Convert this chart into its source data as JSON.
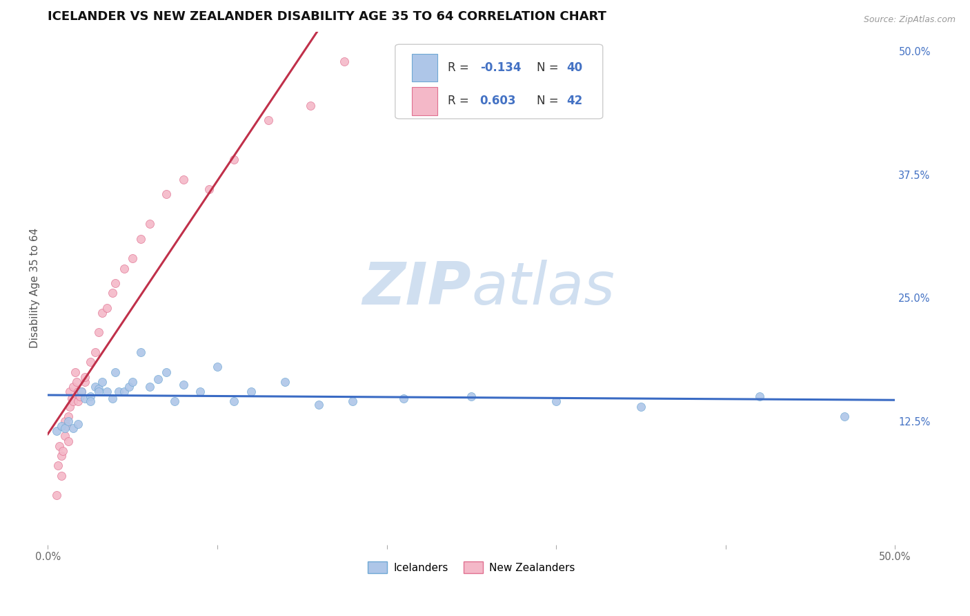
{
  "title": "ICELANDER VS NEW ZEALANDER DISABILITY AGE 35 TO 64 CORRELATION CHART",
  "source_text": "Source: ZipAtlas.com",
  "ylabel": "Disability Age 35 to 64",
  "xlim": [
    0.0,
    0.5
  ],
  "ylim": [
    0.0,
    0.52
  ],
  "x_ticks": [
    0.0,
    0.1,
    0.2,
    0.3,
    0.4,
    0.5
  ],
  "x_tick_labels": [
    "0.0%",
    "",
    "",
    "",
    "",
    "50.0%"
  ],
  "right_y_ticks": [
    0.125,
    0.25,
    0.375,
    0.5
  ],
  "right_y_tick_labels": [
    "12.5%",
    "25.0%",
    "37.5%",
    "50.0%"
  ],
  "icelanders_color": "#aec6e8",
  "icelanders_edge": "#6fa8d4",
  "new_zealanders_color": "#f4b8c8",
  "new_zealanders_edge": "#e07090",
  "trend_icelander_color": "#3a6bc4",
  "trend_nz_color": "#c0304a",
  "trend_nz_dashed_color": "#e08898",
  "legend_box_icelander": "#aec6e8",
  "legend_box_icelander_edge": "#6fa8d4",
  "legend_box_nz": "#f4b8c8",
  "legend_box_nz_edge": "#e07090",
  "legend_r_color": "#4472c4",
  "legend_n_color": "#4472c4",
  "watermark_color": "#d0dff0",
  "background_color": "#ffffff",
  "grid_color": "#c8d4e8",
  "title_color": "#111111",
  "axis_label_color": "#555555",
  "title_fontsize": 13,
  "label_fontsize": 11,
  "tick_fontsize": 10.5,
  "marker_size": 75,
  "icelanders_x": [
    0.005,
    0.008,
    0.01,
    0.012,
    0.015,
    0.018,
    0.02,
    0.022,
    0.025,
    0.025,
    0.028,
    0.03,
    0.03,
    0.032,
    0.035,
    0.038,
    0.04,
    0.042,
    0.045,
    0.048,
    0.05,
    0.055,
    0.06,
    0.065,
    0.07,
    0.075,
    0.08,
    0.09,
    0.1,
    0.11,
    0.12,
    0.14,
    0.16,
    0.18,
    0.21,
    0.25,
    0.3,
    0.35,
    0.42,
    0.47
  ],
  "icelanders_y": [
    0.115,
    0.12,
    0.118,
    0.125,
    0.118,
    0.122,
    0.155,
    0.148,
    0.15,
    0.145,
    0.16,
    0.158,
    0.155,
    0.165,
    0.155,
    0.148,
    0.175,
    0.155,
    0.155,
    0.16,
    0.165,
    0.195,
    0.16,
    0.168,
    0.175,
    0.145,
    0.162,
    0.155,
    0.18,
    0.145,
    0.155,
    0.165,
    0.142,
    0.145,
    0.148,
    0.15,
    0.145,
    0.14,
    0.15,
    0.13
  ],
  "new_zealanders_x": [
    0.005,
    0.006,
    0.007,
    0.008,
    0.008,
    0.009,
    0.01,
    0.01,
    0.011,
    0.012,
    0.012,
    0.013,
    0.013,
    0.014,
    0.015,
    0.015,
    0.016,
    0.017,
    0.018,
    0.018,
    0.019,
    0.02,
    0.022,
    0.022,
    0.025,
    0.028,
    0.03,
    0.032,
    0.035,
    0.038,
    0.04,
    0.045,
    0.05,
    0.055,
    0.06,
    0.07,
    0.08,
    0.095,
    0.11,
    0.13,
    0.155,
    0.175
  ],
  "new_zealanders_y": [
    0.05,
    0.08,
    0.1,
    0.07,
    0.09,
    0.095,
    0.11,
    0.125,
    0.12,
    0.105,
    0.13,
    0.14,
    0.155,
    0.148,
    0.16,
    0.145,
    0.175,
    0.165,
    0.145,
    0.155,
    0.15,
    0.155,
    0.165,
    0.17,
    0.185,
    0.195,
    0.215,
    0.235,
    0.24,
    0.255,
    0.265,
    0.28,
    0.29,
    0.31,
    0.325,
    0.355,
    0.37,
    0.36,
    0.39,
    0.43,
    0.445,
    0.49
  ]
}
